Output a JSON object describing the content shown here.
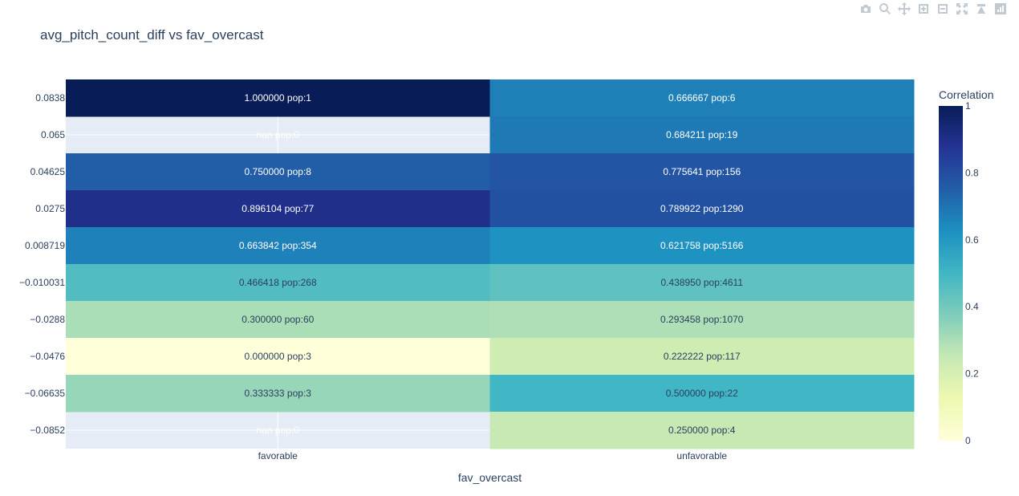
{
  "chart_data": {
    "type": "heatmap",
    "title": "avg_pitch_count_diff vs fav_overcast",
    "xlabel": "fav_overcast",
    "ylabel": "",
    "x": [
      "favorable",
      "unfavorable"
    ],
    "y": [
      "0.0838",
      "0.065",
      "0.04625",
      "0.0275",
      "0.008719",
      "−0.010031",
      "−0.0288",
      "−0.0476",
      "−0.06635",
      "−0.0852"
    ],
    "z": [
      [
        1.0,
        0.666667
      ],
      [
        null,
        0.684211
      ],
      [
        0.75,
        0.775641
      ],
      [
        0.896104,
        0.789922
      ],
      [
        0.663842,
        0.621758
      ],
      [
        0.466418,
        0.43895
      ],
      [
        0.3,
        0.293458
      ],
      [
        0.0,
        0.222222
      ],
      [
        0.333333,
        0.5
      ],
      [
        null,
        0.25
      ]
    ],
    "text": [
      [
        "1.000000 pop:1",
        "0.666667 pop:6"
      ],
      [
        "nan pop:0",
        "0.684211 pop:19"
      ],
      [
        "0.750000 pop:8",
        "0.775641 pop:156"
      ],
      [
        "0.896104 pop:77",
        "0.789922 pop:1290"
      ],
      [
        "0.663842 pop:354",
        "0.621758 pop:5166"
      ],
      [
        "0.466418 pop:268",
        "0.438950 pop:4611"
      ],
      [
        "0.300000 pop:60",
        "0.293458 pop:1070"
      ],
      [
        "0.000000 pop:3",
        "0.222222 pop:117"
      ],
      [
        "0.333333 pop:3",
        "0.500000 pop:22"
      ],
      [
        "nan pop:0",
        "0.250000 pop:4"
      ]
    ],
    "colorbar": {
      "title": "Correlation",
      "range": [
        0,
        1
      ],
      "ticks": [
        "0",
        "0.2",
        "0.4",
        "0.6",
        "0.8",
        "1"
      ],
      "colorscale": "YlGnBu"
    },
    "colors": {
      "scale": [
        "#ffffd9",
        "#edf8b1",
        "#c7e9b4",
        "#7fcdbb",
        "#41b6c4",
        "#1d91c0",
        "#225ea8",
        "#253494",
        "#081d58"
      ],
      "nan_background": "#e5ecf6",
      "text_dark": "#2a3f5f",
      "text_light": "#ffffff"
    }
  },
  "modebar": {
    "icons": [
      "camera-icon",
      "zoom-icon",
      "pan-icon",
      "zoom-in-icon",
      "zoom-out-icon",
      "autoscale-icon",
      "reset-axes-icon",
      "plotly-logo-icon"
    ]
  }
}
